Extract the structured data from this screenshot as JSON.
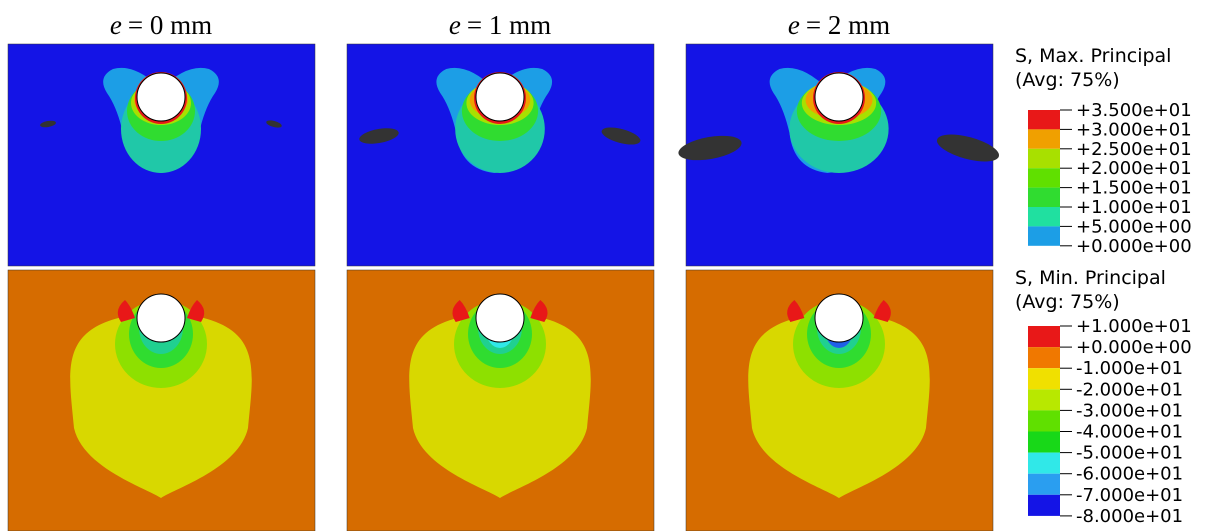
{
  "panels": [
    {
      "symbol": "e",
      "label": "= 0 mm"
    },
    {
      "symbol": "e",
      "label": "= 1 mm"
    },
    {
      "symbol": "e",
      "label": "= 2 mm"
    }
  ],
  "legends": [
    {
      "title": "S, Max. Principal",
      "subtitle": "(Avg: 75%)",
      "labels": [
        "+3.500e+01",
        "+3.000e+01",
        "+2.500e+01",
        "+2.000e+01",
        "+1.500e+01",
        "+1.000e+01",
        "+5.000e+00",
        "+0.000e+00"
      ]
    },
    {
      "title": "S, Min. Principal",
      "subtitle": "(Avg: 75%)",
      "labels": [
        "+1.000e+01",
        "+0.000e+00",
        "-1.000e+01",
        "-2.000e+01",
        "-3.000e+01",
        "-4.000e+01",
        "-5.000e+01",
        "-6.000e+01",
        "-7.000e+01",
        "-8.000e+01"
      ]
    }
  ]
}
